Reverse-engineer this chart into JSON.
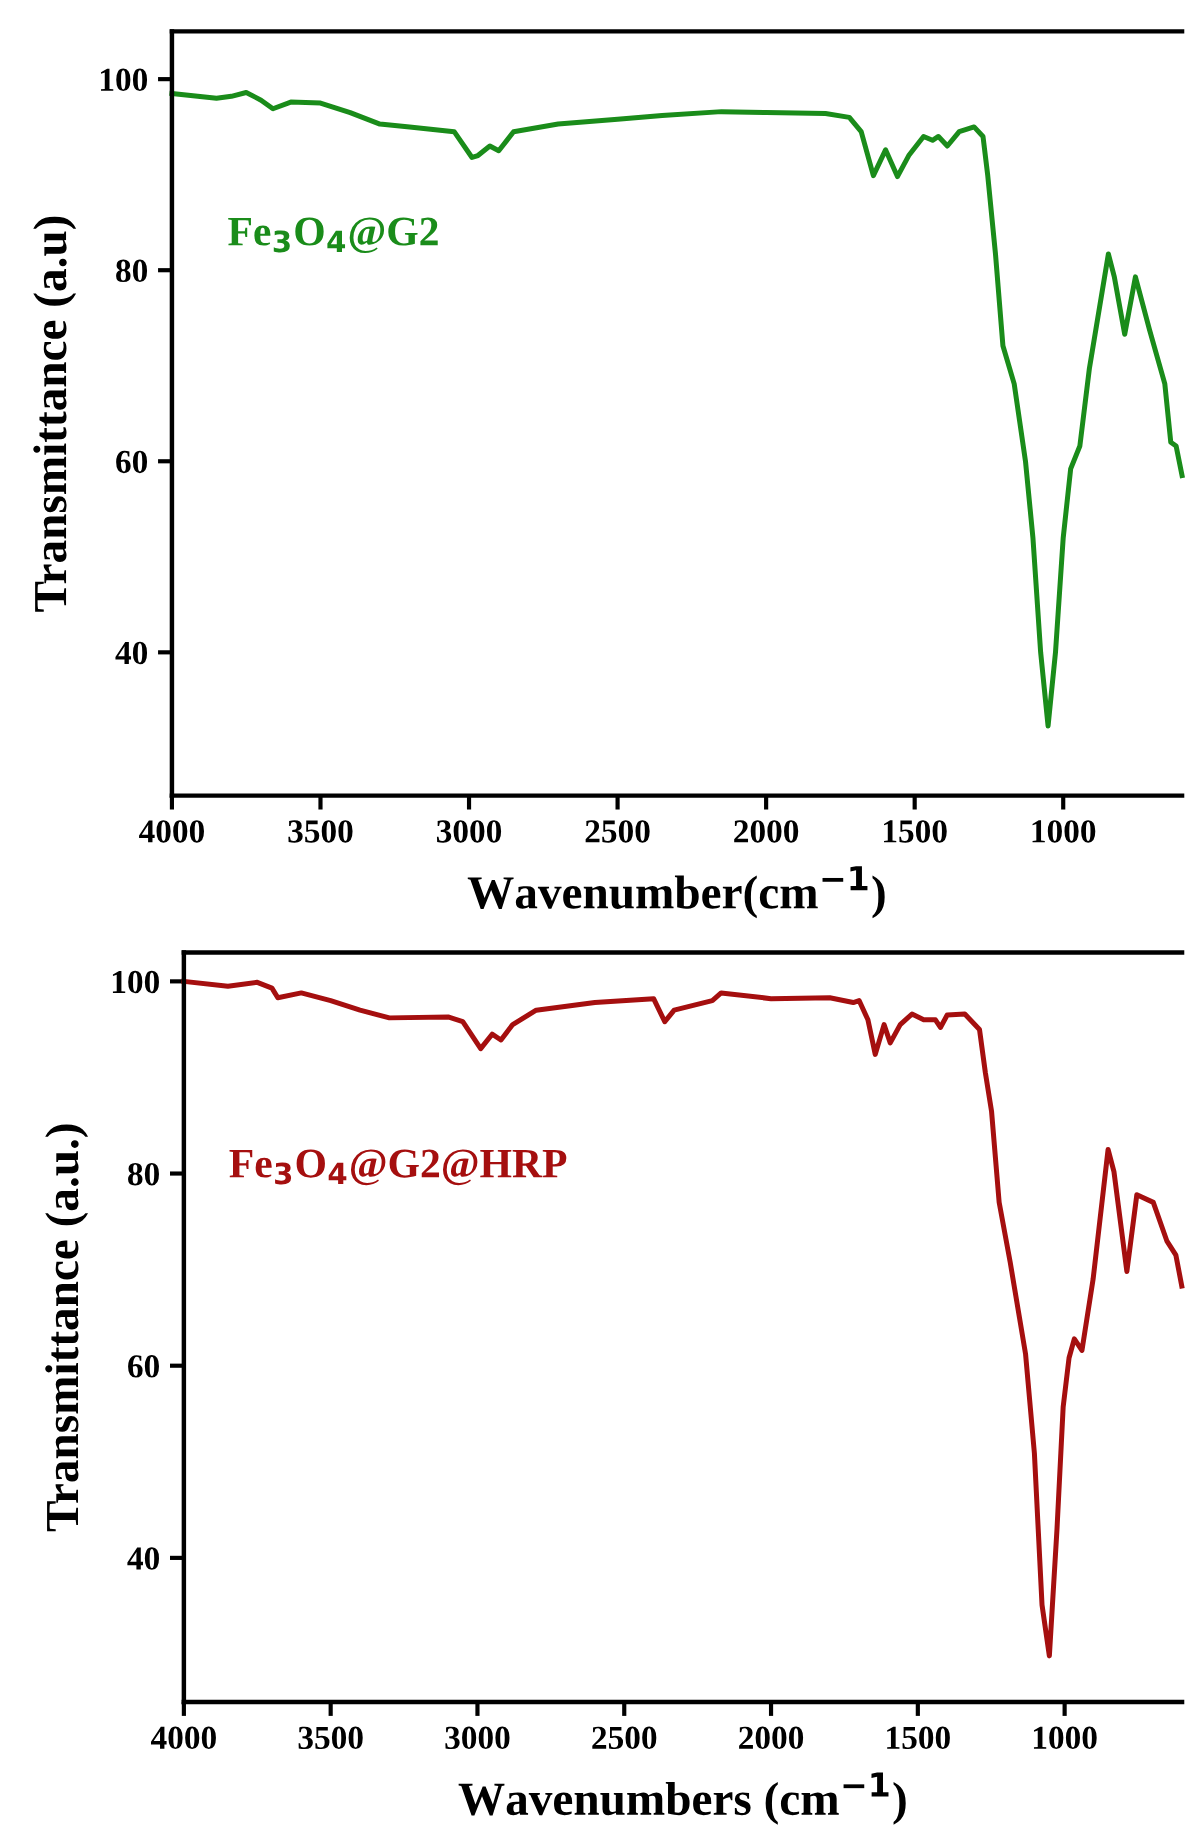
{
  "chart_data": [
    {
      "type": "line",
      "xlabel": "Wavenumber(cm$^{−1}$)",
      "ylabel": "Transmittance (a.u)",
      "xlim": [
        4000,
        600
      ],
      "ylim": [
        25,
        105
      ],
      "xticks": [
        4000,
        3500,
        3000,
        2500,
        2000,
        1500,
        1000
      ],
      "yticks": [
        40,
        60,
        80,
        100
      ],
      "grid": false,
      "legend": false,
      "series": [
        {
          "name": "Fe$_{3}$O$_{4}$@G2",
          "color": "#1a8c1a",
          "x": [
            4000,
            3850,
            3800,
            3750,
            3700,
            3660,
            3600,
            3500,
            3400,
            3300,
            3200,
            3050,
            2990,
            2970,
            2930,
            2900,
            2850,
            2700,
            2500,
            2350,
            2150,
            2000,
            1800,
            1720,
            1680,
            1639,
            1598,
            1558,
            1520,
            1470,
            1440,
            1420,
            1390,
            1350,
            1300,
            1270,
            1254,
            1228,
            1203,
            1165,
            1127,
            1102,
            1076,
            1051,
            1026,
            1000,
            975,
            944,
            912,
            848,
            828,
            793,
            757,
            709,
            658,
            638,
            620,
            600
          ],
          "values": [
            98.5,
            98.0,
            98.2,
            98.6,
            97.8,
            96.9,
            97.6,
            97.5,
            96.5,
            95.3,
            95.0,
            94.5,
            91.8,
            92.0,
            93.0,
            92.5,
            94.5,
            95.3,
            95.8,
            96.2,
            96.6,
            96.5,
            96.4,
            96.0,
            94.5,
            89.9,
            92.6,
            89.8,
            92.0,
            94.0,
            93.6,
            94.0,
            93.0,
            94.5,
            95.0,
            94.0,
            89.9,
            81.7,
            72.1,
            68.1,
            60.0,
            52.0,
            40.0,
            32.3,
            40.0,
            52.0,
            59.2,
            61.6,
            69.7,
            81.7,
            79.3,
            73.3,
            79.3,
            73.7,
            68.1,
            62.0,
            61.6,
            58.5
          ]
        }
      ]
    },
    {
      "type": "line",
      "xlabel": "Wavenumbers (cm$^{−1}$)",
      "ylabel": "Transmittance (a.u.)",
      "xlim": [
        4000,
        600
      ],
      "ylim": [
        25,
        103
      ],
      "xticks": [
        4000,
        3500,
        3000,
        2500,
        2000,
        1500,
        1000
      ],
      "yticks": [
        40,
        60,
        80,
        100
      ],
      "grid": false,
      "legend": false,
      "series": [
        {
          "name": "Fe$_{3}$O$_{4}$@G2@HRP",
          "color": "#a50f0f",
          "x": [
            4000,
            3850,
            3750,
            3700,
            3680,
            3600,
            3500,
            3400,
            3300,
            3100,
            3050,
            2989,
            2950,
            2920,
            2880,
            2800,
            2600,
            2400,
            2362,
            2330,
            2200,
            2170,
            2000,
            1800,
            1720,
            1700,
            1670,
            1645,
            1615,
            1594,
            1560,
            1520,
            1480,
            1440,
            1423,
            1400,
            1340,
            1290,
            1270,
            1249,
            1223,
            1185,
            1133,
            1103,
            1077,
            1052,
            1026,
            1005,
            985,
            967,
            941,
            903,
            852,
            832,
            788,
            754,
            698,
            652,
            621,
            601
          ],
          "values": [
            100.0,
            99.5,
            99.9,
            99.3,
            98.3,
            98.8,
            98.0,
            97.0,
            96.2,
            96.3,
            95.8,
            93.0,
            94.5,
            93.9,
            95.5,
            97.0,
            97.8,
            98.2,
            95.8,
            97.0,
            98.0,
            98.8,
            98.2,
            98.3,
            97.8,
            98.0,
            96.0,
            92.4,
            95.5,
            93.6,
            95.5,
            96.6,
            96.0,
            96.0,
            95.2,
            96.5,
            96.6,
            95.0,
            90.5,
            86.5,
            77.0,
            70.7,
            61.2,
            50.9,
            35.1,
            29.8,
            43.0,
            55.7,
            60.8,
            62.8,
            61.6,
            69.0,
            82.5,
            80.2,
            69.8,
            77.8,
            77.0,
            73.0,
            71.5,
            68.3
          ]
        }
      ]
    }
  ]
}
